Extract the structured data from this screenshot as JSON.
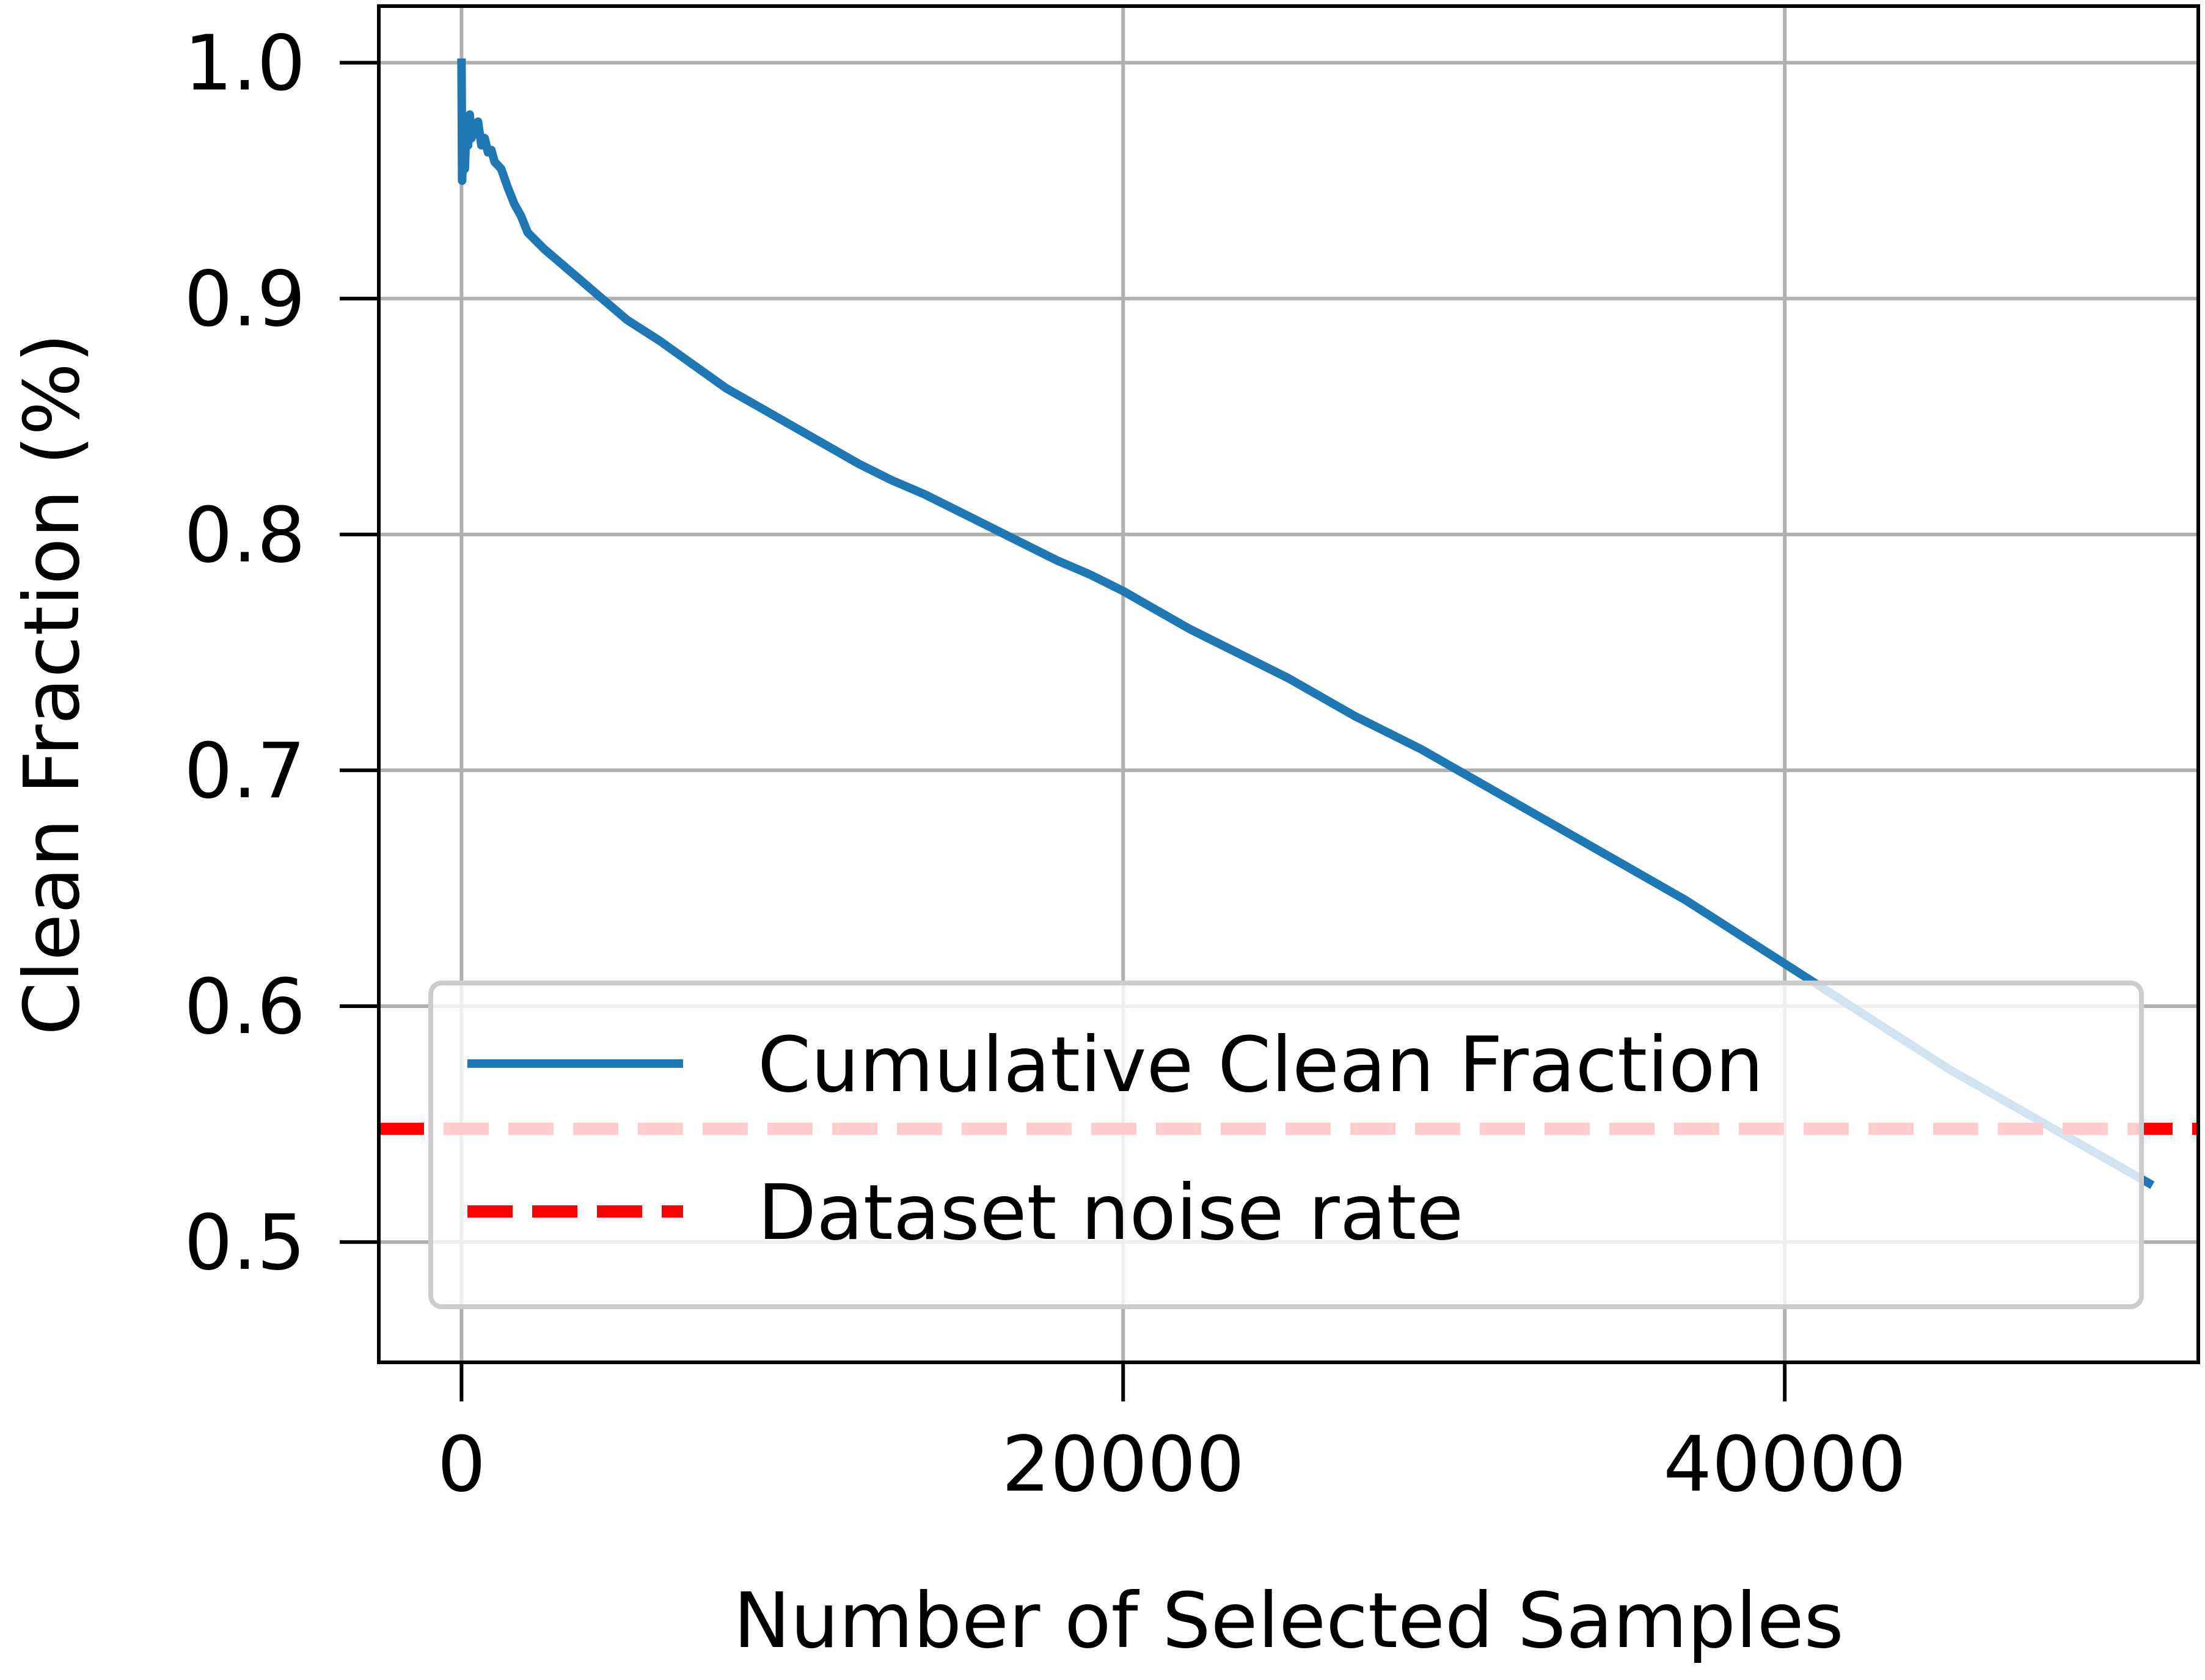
{
  "chart_data": {
    "type": "line",
    "title": "",
    "xlabel": "Number of Selected Samples",
    "ylabel": "Clean Fraction (%)",
    "xlim": [
      -2500,
      52500
    ],
    "ylim": [
      0.449,
      1.024
    ],
    "grid": true,
    "legend_position": "lower-right",
    "xticks": [
      0,
      20000,
      40000
    ],
    "xtick_labels": [
      "0",
      "20000",
      "40000"
    ],
    "yticks": [
      0.5,
      0.6,
      0.7,
      0.8,
      0.9,
      1.0
    ],
    "ytick_labels": [
      "0.5",
      "0.6",
      "0.7",
      "0.8",
      "0.9",
      "1.0"
    ],
    "series": [
      {
        "name": "Cumulative Clean Fraction",
        "color": "#1f77b4",
        "style": "solid",
        "x": [
          1,
          20,
          50,
          80,
          100,
          150,
          200,
          250,
          300,
          400,
          500,
          600,
          700,
          800,
          900,
          1000,
          1200,
          1400,
          1600,
          1800,
          2000,
          2500,
          3000,
          3500,
          4000,
          5000,
          6000,
          7000,
          8000,
          9000,
          10000,
          11000,
          12000,
          13000,
          14000,
          15000,
          16000,
          17000,
          18000,
          19000,
          20000,
          21000,
          22000,
          23000,
          24000,
          25000,
          26000,
          27000,
          28000,
          29000,
          30000,
          31000,
          32000,
          33000,
          34000,
          35000,
          36000,
          37000,
          38000,
          39000,
          40000,
          41000,
          42000,
          43000,
          44000,
          45000,
          46000,
          47000,
          48000,
          49000,
          50000,
          51000
        ],
        "values": [
          1.0,
          0.95,
          0.965,
          0.97,
          0.955,
          0.975,
          0.965,
          0.978,
          0.968,
          0.972,
          0.975,
          0.965,
          0.968,
          0.962,
          0.963,
          0.958,
          0.955,
          0.947,
          0.94,
          0.935,
          0.928,
          0.921,
          0.915,
          0.909,
          0.903,
          0.891,
          0.882,
          0.872,
          0.862,
          0.854,
          0.846,
          0.838,
          0.83,
          0.823,
          0.817,
          0.81,
          0.803,
          0.796,
          0.789,
          0.783,
          0.776,
          0.768,
          0.76,
          0.753,
          0.746,
          0.739,
          0.731,
          0.723,
          0.716,
          0.709,
          0.701,
          0.693,
          0.685,
          0.677,
          0.669,
          0.661,
          0.653,
          0.645,
          0.636,
          0.627,
          0.618,
          0.609,
          0.6,
          0.591,
          0.582,
          0.573,
          0.565,
          0.557,
          0.549,
          0.541,
          0.533,
          0.525
        ]
      },
      {
        "name": "Dataset noise rate",
        "color": "#ff0000",
        "style": "dashed",
        "hline": 0.548
      }
    ]
  }
}
